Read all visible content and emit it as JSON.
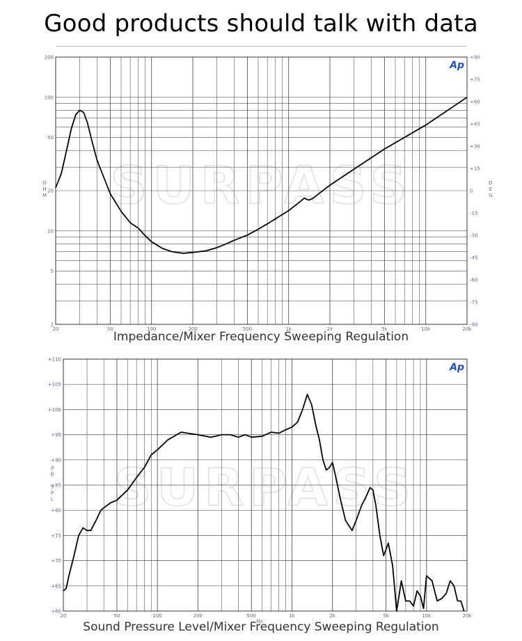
{
  "headline": "Good products should talk with data",
  "chart_data": [
    {
      "type": "line",
      "caption": "Impedance/Mixer Frequency Sweeping Regulation",
      "brand_logo": "Ap",
      "watermark": "SURPASS",
      "xscale": "log",
      "yscale": "log",
      "xlim": [
        20,
        20000
      ],
      "ylim": [
        2,
        200
      ],
      "y2lim": [
        -90,
        90
      ],
      "xlabel": "",
      "ylabel": "OHM",
      "y2label": "DEG",
      "x_tick_labels": [
        "20",
        "50",
        "100",
        "200",
        "500",
        "1k",
        "2k",
        "5k",
        "10k",
        "20k"
      ],
      "y_tick_labels": [
        "200",
        "100",
        "50",
        "20",
        "10",
        "5",
        "2"
      ],
      "y2_tick_labels": [
        "+90",
        "+75",
        "+60",
        "+45",
        "+30",
        "+15",
        "0",
        "-15",
        "-30",
        "-45",
        "-60",
        "-75",
        "-90"
      ],
      "grid": true,
      "line_color": "#000000",
      "series": [
        {
          "x": [
            20,
            22,
            24,
            26,
            28,
            30,
            32,
            34,
            37,
            40,
            45,
            50,
            60,
            70,
            80,
            90,
            100,
            120,
            140,
            170,
            200,
            250,
            300,
            350,
            400,
            500,
            600,
            700,
            800,
            1000,
            1200,
            1300,
            1400,
            1500,
            2000,
            3000,
            5000,
            10000,
            20000
          ],
          "y": [
            21,
            27,
            40,
            58,
            74,
            80,
            77,
            65,
            46,
            34,
            25,
            19,
            14,
            11.5,
            10.5,
            9.2,
            8.3,
            7.4,
            7.0,
            6.8,
            6.9,
            7.1,
            7.5,
            8.0,
            8.5,
            9.3,
            10.3,
            11.3,
            12.3,
            14.2,
            16.4,
            17.6,
            17.0,
            17.5,
            22,
            29,
            41,
            62,
            100
          ]
        }
      ]
    },
    {
      "type": "line",
      "caption": "Sound Pressure Level/Mixer Frequency Sweeping Regulation",
      "brand_logo": "Ap",
      "watermark": "SURPASS",
      "xscale": "log",
      "xlim": [
        20,
        20000
      ],
      "ylim": [
        60,
        110
      ],
      "xlabel": "Hz",
      "ylabel": "dB SPL",
      "x_tick_labels": [
        "20",
        "50",
        "100",
        "200",
        "500",
        "1k",
        "2k",
        "5k",
        "10k",
        "20k"
      ],
      "y_tick_labels": [
        "+110",
        "+105",
        "+100",
        "+95",
        "+90",
        "+85",
        "+80",
        "+75",
        "+70",
        "+65",
        "+60"
      ],
      "grid": true,
      "line_color": "#000000",
      "series": [
        {
          "x": [
            20,
            21,
            22,
            24,
            26,
            28,
            30,
            32,
            35,
            38,
            40,
            45,
            50,
            60,
            70,
            80,
            90,
            100,
            120,
            150,
            200,
            250,
            300,
            350,
            400,
            450,
            500,
            600,
            700,
            800,
            900,
            1000,
            1100,
            1200,
            1300,
            1400,
            1500,
            1600,
            1700,
            1800,
            1900,
            2000,
            2100,
            2300,
            2500,
            2800,
            3000,
            3300,
            3600,
            3800,
            4000,
            4200,
            4500,
            4800,
            5200,
            5600,
            6000,
            6500,
            7000,
            7500,
            8000,
            8500,
            9000,
            9500,
            10000,
            11000,
            12000,
            13000,
            14000,
            15000,
            16000,
            17000,
            18000,
            19000
          ],
          "y": [
            64,
            64.5,
            67,
            71,
            75,
            76.5,
            76,
            76,
            78,
            80,
            80.5,
            81.5,
            82,
            84,
            86.5,
            88.5,
            91,
            92,
            94,
            95.5,
            95,
            94.5,
            95,
            95,
            94.5,
            95,
            94.5,
            94.7,
            95.5,
            95.3,
            96,
            96.5,
            97.5,
            100,
            103,
            101,
            97,
            94,
            90,
            88,
            88.5,
            89.5,
            87,
            82,
            78,
            76,
            78,
            81,
            83,
            84.5,
            84,
            81,
            75,
            71,
            73.5,
            69,
            60,
            66,
            62,
            62,
            61,
            64,
            63,
            60.5,
            67,
            66,
            62,
            62.5,
            63.5,
            66,
            65,
            62,
            62,
            60
          ]
        }
      ]
    }
  ]
}
